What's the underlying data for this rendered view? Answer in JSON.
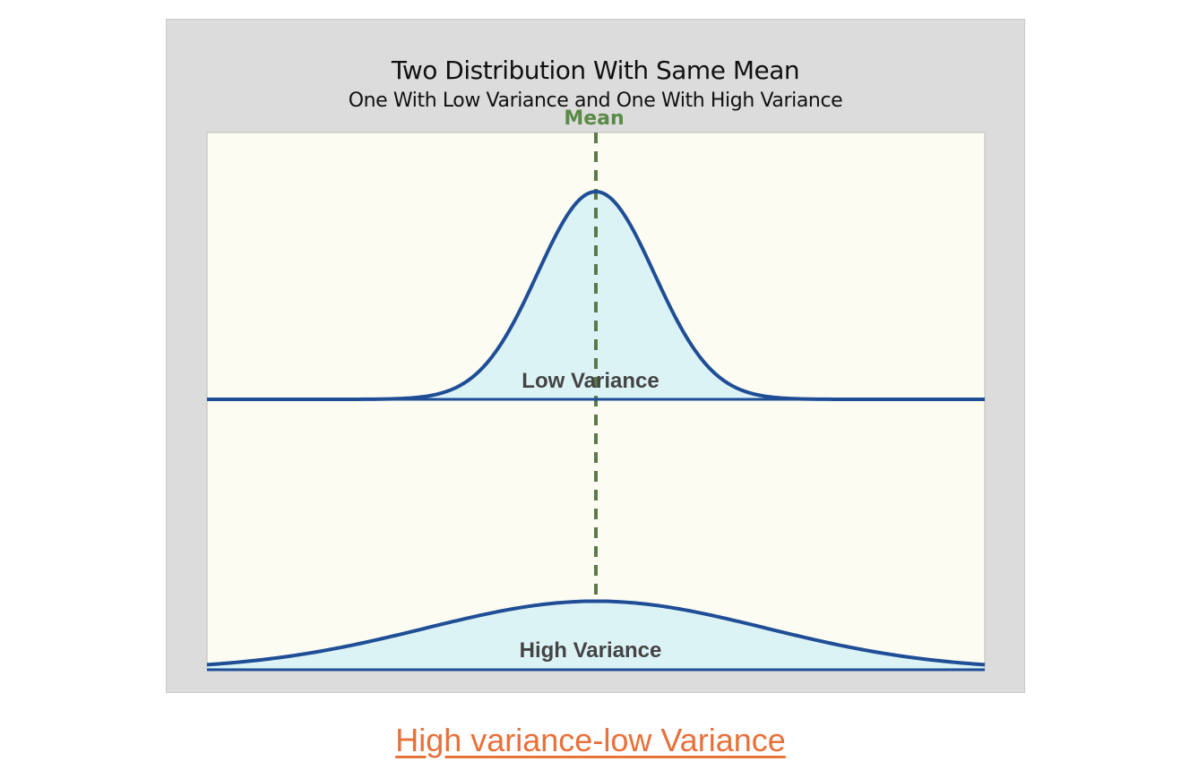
{
  "chart_data": {
    "type": "area",
    "title": "Two Distribution With Same Mean",
    "subtitle": "One With Low Variance and One With High Variance",
    "mean_label": "Mean",
    "mean": 0,
    "xlim": [
      -8,
      8
    ],
    "series": [
      {
        "name": "Low Variance",
        "mean": 0,
        "sd": 1.2,
        "peak": 1.0
      },
      {
        "name": "High Variance",
        "mean": 0,
        "sd": 3.5,
        "peak": 0.33
      }
    ],
    "colors": {
      "figure_bg": "#dcdcdc",
      "panel_bg": "#fcfcf2",
      "curve": "#1f4e96",
      "fill": "#dcf3f6",
      "mean_line": "#5a7a4a",
      "mean_label": "#5a8a48",
      "series_label": "#444444"
    },
    "grid": false
  },
  "caption": "High variance-low Variance",
  "colors": {
    "caption": "#e8703a"
  }
}
